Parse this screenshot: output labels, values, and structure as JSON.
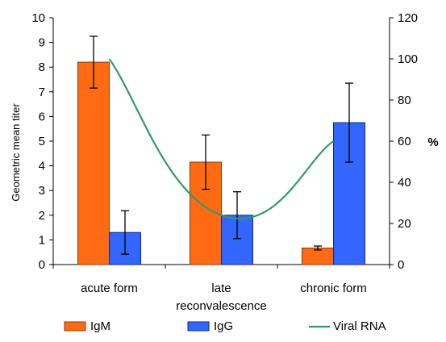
{
  "chart_data": {
    "type": "bar",
    "categories": [
      "acute form",
      "late reconvalescence",
      "chronic form"
    ],
    "category_lines": [
      [
        "acute form"
      ],
      [
        "late",
        "reconvalescence"
      ],
      [
        "chronic form"
      ]
    ],
    "series": [
      {
        "name": "IgM",
        "values": [
          8.2,
          4.15,
          0.67
        ],
        "error": [
          1.05,
          1.1,
          0.08
        ],
        "color": "#ff6a13",
        "stroke": "#8a3a00",
        "axis": "left"
      },
      {
        "name": "IgG",
        "values": [
          1.3,
          2.0,
          5.75
        ],
        "error": [
          0.88,
          0.95,
          1.6
        ],
        "color": "#3366ff",
        "stroke": "#0a2a8a",
        "axis": "left"
      }
    ],
    "line_series": {
      "name": "Viral RNA",
      "color": "#339966",
      "axis": "right",
      "points": [
        {
          "category": 0,
          "value": 100
        },
        {
          "category": 1,
          "value": 24
        },
        {
          "category": 2,
          "value": 60
        }
      ]
    },
    "ylabel": "Geometric mean titer",
    "y2label": "%",
    "ylim": [
      0,
      10
    ],
    "y2lim": [
      0,
      120
    ],
    "yticks": [
      0,
      1,
      2,
      3,
      4,
      5,
      6,
      7,
      8,
      9,
      10
    ],
    "y2ticks": [
      0,
      20,
      40,
      60,
      80,
      100,
      120
    ],
    "grid": false,
    "legend_position": "bottom"
  }
}
